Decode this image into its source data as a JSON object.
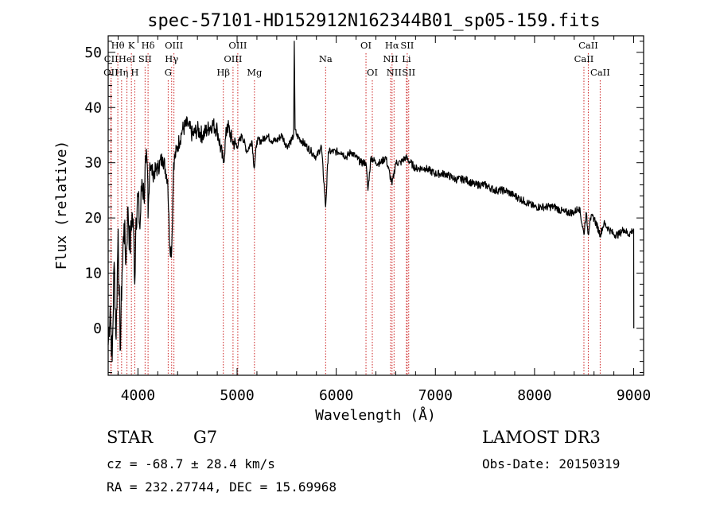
{
  "chart_data": {
    "type": "line",
    "title": "spec-57101-HD152912N162344B01_sp05-159.fits",
    "xlabel": "Wavelength (Å)",
    "ylabel": "Flux (relative)",
    "xlim": [
      3700,
      9100
    ],
    "ylim": [
      -8.5,
      53
    ],
    "xticks": [
      4000,
      5000,
      6000,
      7000,
      8000,
      9000
    ],
    "yticks": [
      0,
      10,
      20,
      30,
      40,
      50
    ],
    "series": [
      {
        "name": "spectrum",
        "x": [
          3700,
          3720,
          3740,
          3760,
          3780,
          3800,
          3820,
          3840,
          3860,
          3880,
          3900,
          3920,
          3940,
          3960,
          3968,
          3980,
          4000,
          4020,
          4040,
          4060,
          4080,
          4100,
          4102,
          4120,
          4150,
          4200,
          4250,
          4300,
          4320,
          4340,
          4360,
          4400,
          4450,
          4500,
          4550,
          4600,
          4650,
          4700,
          4750,
          4800,
          4861,
          4900,
          4950,
          5000,
          5050,
          5100,
          5150,
          5173,
          5200,
          5250,
          5300,
          5350,
          5400,
          5450,
          5500,
          5550,
          5570,
          5577,
          5585,
          5600,
          5650,
          5700,
          5750,
          5800,
          5850,
          5893,
          5920,
          5950,
          6000,
          6050,
          6100,
          6150,
          6200,
          6250,
          6300,
          6320,
          6350,
          6400,
          6450,
          6500,
          6563,
          6600,
          6650,
          6700,
          6750,
          6800,
          6900,
          7000,
          7100,
          7200,
          7300,
          7400,
          7500,
          7600,
          7700,
          7800,
          7900,
          8000,
          8100,
          8200,
          8300,
          8400,
          8450,
          8498,
          8520,
          8542,
          8560,
          8600,
          8662,
          8700,
          8750,
          8800,
          8850,
          8900,
          8950,
          9000,
          9001
        ],
        "y": [
          -3,
          4,
          -6,
          12,
          -2,
          18,
          -4,
          10,
          19,
          12,
          22,
          14,
          21,
          16,
          8,
          20,
          24,
          18,
          27,
          24,
          30,
          26,
          20,
          30,
          28,
          29,
          31,
          27,
          15,
          14,
          30,
          33,
          36,
          37,
          35,
          36,
          35,
          36,
          37,
          36,
          30,
          37,
          34,
          33,
          35,
          32,
          34,
          29,
          34,
          34,
          35,
          34,
          34,
          35,
          33,
          34,
          35,
          52,
          36,
          35,
          34,
          33,
          32,
          31,
          33,
          22,
          32,
          32,
          32,
          32,
          31,
          32,
          31,
          30,
          30,
          25,
          31,
          30,
          30,
          31,
          26,
          30,
          30,
          31,
          30,
          29,
          29,
          28,
          28,
          27,
          27,
          26,
          26,
          25,
          25,
          24,
          23,
          22,
          22,
          22,
          21,
          21,
          22,
          17,
          21,
          17,
          20,
          20,
          17,
          19,
          18,
          17,
          17,
          18,
          17,
          18,
          0
        ]
      }
    ],
    "lines": [
      {
        "label": "CII",
        "x": 3730,
        "row": 2
      },
      {
        "label": "OII",
        "x": 3727,
        "row": 3
      },
      {
        "label": "Hθ",
        "x": 3797,
        "row": 1
      },
      {
        "label": "Hη",
        "x": 3835,
        "row": 3
      },
      {
        "label": "HeI",
        "x": 3889,
        "row": 2
      },
      {
        "label": "K",
        "x": 3934,
        "row": 1
      },
      {
        "label": "H",
        "x": 3968,
        "row": 3
      },
      {
        "label": "SII",
        "x": 4072,
        "row": 2
      },
      {
        "label": "Hδ",
        "x": 4102,
        "row": 1
      },
      {
        "label": "OIII",
        "x": 4363,
        "row": 1
      },
      {
        "label": "Hγ",
        "x": 4340,
        "row": 2
      },
      {
        "label": "G",
        "x": 4305,
        "row": 3
      },
      {
        "label": "Hβ",
        "x": 4861,
        "row": 3
      },
      {
        "label": "OIII",
        "x": 4959,
        "row": 2
      },
      {
        "label": "OIII",
        "x": 5007,
        "row": 1
      },
      {
        "label": "Mg",
        "x": 5175,
        "row": 3
      },
      {
        "label": "Na",
        "x": 5893,
        "row": 2
      },
      {
        "label": "OI",
        "x": 6300,
        "row": 1
      },
      {
        "label": "OI",
        "x": 6364,
        "row": 3
      },
      {
        "label": "Hα",
        "x": 6563,
        "row": 1
      },
      {
        "label": "NII",
        "x": 6548,
        "row": 2
      },
      {
        "label": "NII",
        "x": 6583,
        "row": 3
      },
      {
        "label": "SII",
        "x": 6716,
        "row": 1
      },
      {
        "label": "Li",
        "x": 6708,
        "row": 2
      },
      {
        "label": "SII",
        "x": 6731,
        "row": 3
      },
      {
        "label": "CaII",
        "x": 8542,
        "row": 1
      },
      {
        "label": "CaII",
        "x": 8498,
        "row": 2
      },
      {
        "label": "CaII",
        "x": 8662,
        "row": 3
      }
    ]
  },
  "info": {
    "object_class": "STAR",
    "subclass": "G7",
    "survey": "LAMOST DR3",
    "cz": "cz = -68.7 ± 28.4 km/s",
    "obs_date": "Obs-Date: 20150319",
    "coords": "RA = 232.27744, DEC =  15.69968"
  },
  "colors": {
    "line_marker": "#cc2222",
    "spectrum": "#000000"
  }
}
